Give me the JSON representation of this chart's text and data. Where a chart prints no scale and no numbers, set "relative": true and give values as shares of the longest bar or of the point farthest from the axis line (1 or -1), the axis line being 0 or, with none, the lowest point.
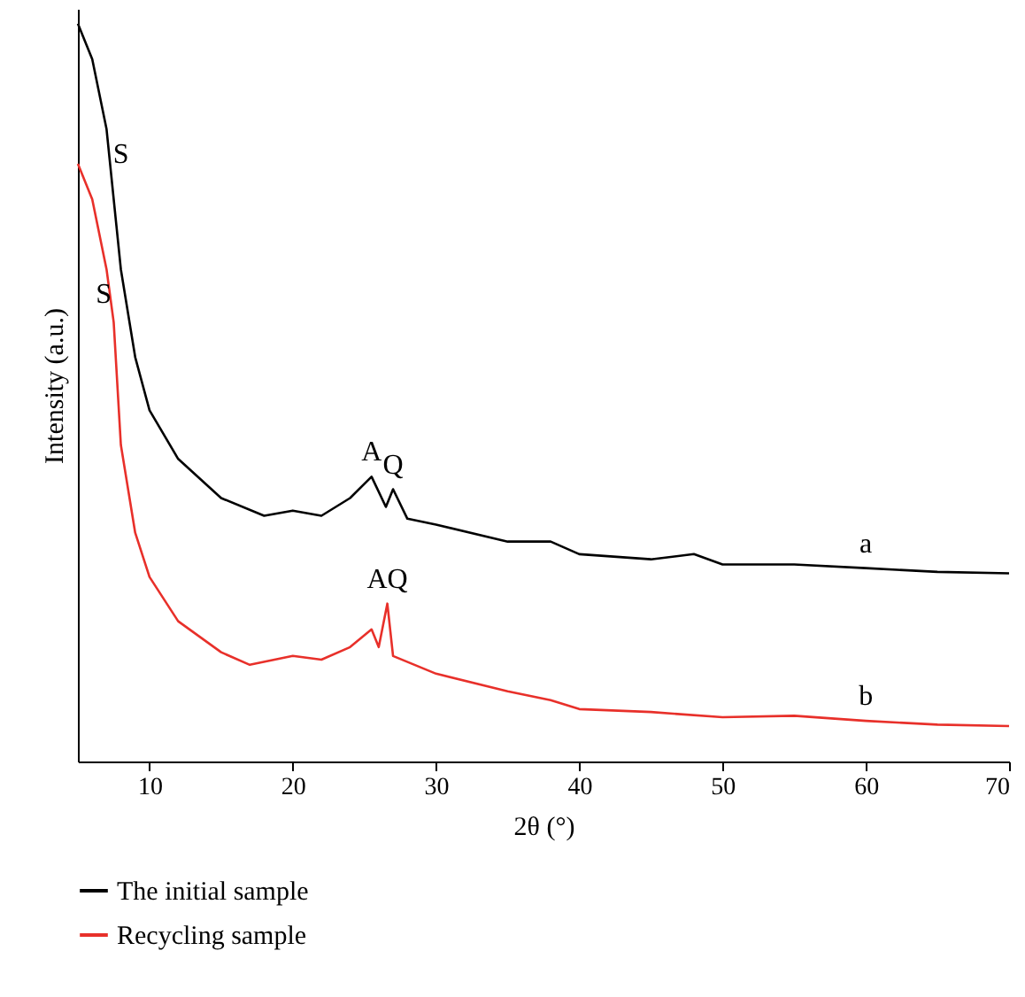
{
  "chart_data": {
    "type": "line",
    "relative": true,
    "xlabel": "2θ (°)",
    "ylabel": "Intensity (a.u.)",
    "xlim": [
      5,
      70
    ],
    "xticks": [
      10,
      20,
      30,
      40,
      50,
      60,
      70
    ],
    "grid": false,
    "legend": "bottom",
    "marker": "none",
    "line_style": "solid",
    "series": [
      {
        "name": "The initial sample",
        "color": "#000000",
        "x": [
          5,
          6,
          7,
          8,
          9,
          10,
          12,
          15,
          18,
          20,
          22,
          24,
          25.5,
          26.5,
          27,
          28,
          30,
          35,
          38,
          40,
          45,
          48,
          50,
          55,
          60,
          65,
          70
        ],
        "values": [
          1.0,
          0.952,
          0.857,
          0.667,
          0.548,
          0.476,
          0.41,
          0.357,
          0.333,
          0.34,
          0.333,
          0.357,
          0.386,
          0.345,
          0.369,
          0.329,
          0.321,
          0.298,
          0.298,
          0.281,
          0.274,
          0.281,
          0.267,
          0.267,
          0.262,
          0.257,
          0.255
        ]
      },
      {
        "name": "Recycling sample",
        "color": "#e8302a",
        "x": [
          5,
          6,
          7,
          7.5,
          8,
          9,
          10,
          12,
          15,
          17,
          20,
          22,
          24,
          25.5,
          26,
          26.6,
          27,
          30,
          35,
          38,
          40,
          45,
          50,
          55,
          60,
          65,
          70
        ],
        "values": [
          0.81,
          0.762,
          0.667,
          0.595,
          0.429,
          0.31,
          0.25,
          0.19,
          0.148,
          0.131,
          0.143,
          0.138,
          0.155,
          0.179,
          0.155,
          0.214,
          0.143,
          0.119,
          0.095,
          0.083,
          0.071,
          0.067,
          0.06,
          0.062,
          0.055,
          0.05,
          0.048
        ]
      }
    ],
    "annotations": [
      {
        "text": "S",
        "x": 8,
        "y": 0.79
      },
      {
        "text": "S",
        "x": 6.8,
        "y": 0.6
      },
      {
        "text": "A",
        "x": 25.5,
        "y": 0.386
      },
      {
        "text": "Q",
        "x": 27,
        "y": 0.369
      },
      {
        "text": "AQ",
        "x": 26.6,
        "y": 0.214
      },
      {
        "text": "a",
        "x": 60,
        "y": 0.262
      },
      {
        "text": "b",
        "x": 60,
        "y": 0.055
      }
    ]
  }
}
